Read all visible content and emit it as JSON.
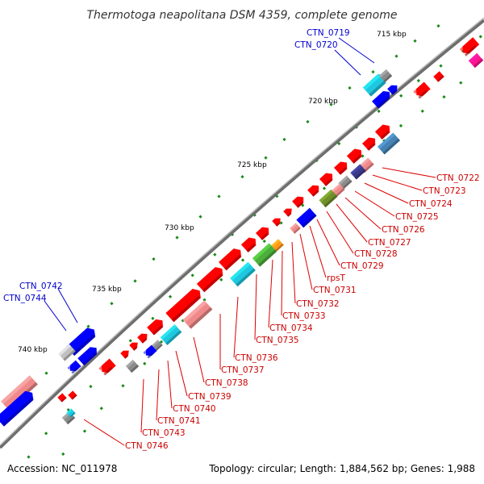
{
  "title": "Thermotoga neapolitana DSM 4359, complete genome",
  "footer": {
    "accession": "Accession: NC_011978",
    "summary": "Topology: circular; Length: 1,884,562 bp; Genes: 1,988"
  },
  "scale_labels": [
    "715 kbp",
    "720 kbp",
    "725 kbp",
    "730 kbp",
    "735 kbp",
    "740 kbp"
  ],
  "gene_labels": {
    "outer": [
      "CTN_0719",
      "CTN_0720",
      "CTN_0742",
      "CTN_0744"
    ],
    "inner": [
      "CTN_0722",
      "CTN_0723",
      "CTN_0724",
      "CTN_0725",
      "CTN_0726",
      "CTN_0727",
      "CTN_0728",
      "CTN_0729",
      "rpsT",
      "CTN_0731",
      "CTN_0732",
      "CTN_0733",
      "CTN_0734",
      "CTN_0735",
      "CTN_0736",
      "CTN_0737",
      "CTN_0738",
      "CTN_0739",
      "CTN_0740",
      "CTN_0741",
      "CTN_0743",
      "CTN_0746"
    ]
  },
  "colors": {
    "backbone": "#7a7a7a",
    "gene_red": "#ff0000",
    "gene_pink": "#f08a8a",
    "gene_blue": "#0000ff",
    "gene_cyan": "#1fc8e0",
    "gene_green": "#4caf3c",
    "gene_olive": "#6f8f2a",
    "gene_orange": "#ff9a1a",
    "gene_gray": "#8c8c8c",
    "gene_navy": "#3a3a8c",
    "gene_steel": "#4682b4",
    "gene_magenta": "#ff1493",
    "label_outer": "#0000cc",
    "label_inner": "#cc0000",
    "gc_tick": "#1a8a1a"
  }
}
